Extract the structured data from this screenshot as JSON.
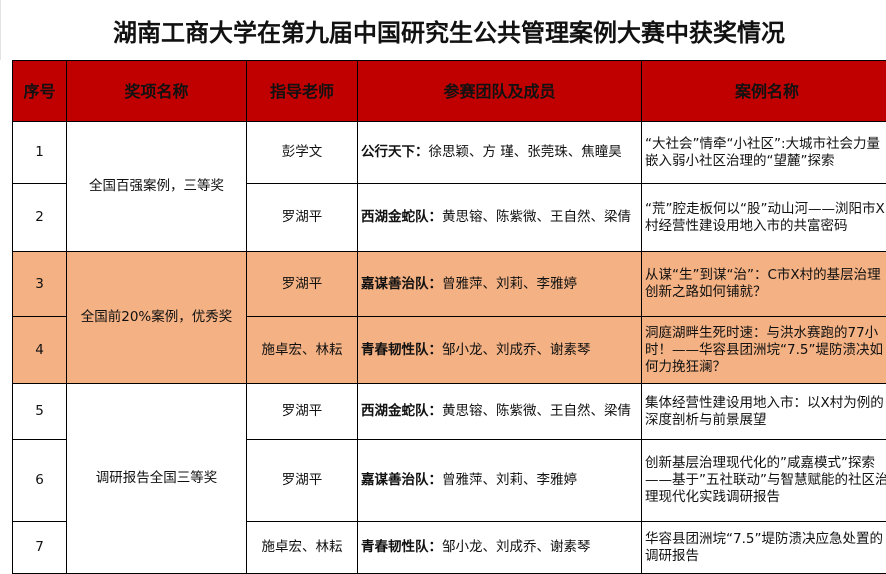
{
  "title": "湖南工商大学在第九届中国研究生公共管理案例大赛中获奖情况",
  "headers": [
    "序号",
    "奖项名称",
    "指导老师",
    "参赛团队及成员",
    "案例名称"
  ],
  "awards": [
    "全国百强案例，三等奖",
    "全国前20%案例，优秀奖",
    "调研报告全国三等奖"
  ],
  "rows": [
    {
      "no": "1",
      "advisor": "彭学文",
      "team": "公行天下：",
      "members": "徐思颖、方 瑾、张莞珠、焦瞳昊",
      "case": "“大社会”情牵“小社区”:大城市社会力量嵌入弱小社区治理的“望麓”探索"
    },
    {
      "no": "2",
      "advisor": "罗湖平",
      "team": "西湖金蛇队：",
      "members": "黄思镕、陈紫微、王自然、梁倩",
      "case": "“荒”腔走板何以“股”动山河——浏阳市X村经营性建设用地入市的共富密码"
    },
    {
      "no": "3",
      "advisor": "罗湖平",
      "team": "嘉谋善治队：",
      "members": "曾雅萍、刘莉、李雅婷",
      "case": "从谋“生”到谋“治”：C市X村的基层治理创新之路如何铺就？"
    },
    {
      "no": "4",
      "advisor": "施卓宏、林耘",
      "team": "青春韧性队：",
      "members": "邹小龙、刘成乔、谢素琴",
      "case": "洞庭湖畔生死时速：与洪水赛跑的77小时！——华容县团洲垸“7.5”堤防溃决如何力挽狂澜？"
    },
    {
      "no": "5",
      "advisor": "罗湖平",
      "team": "西湖金蛇队：",
      "members": "黄思镕、陈紫微、王自然、梁倩",
      "case": "集体经营性建设用地入市：以X村为例的深度剖析与前景展望"
    },
    {
      "no": "6",
      "advisor": "罗湖平",
      "team": "嘉谋善治队：",
      "members": "曾雅萍、刘莉、李雅婷",
      "case": "创新基层治理现代化的”咸嘉模式”探索——基于”五社联动”与智慧赋能的社区治理现代化实践调研报告"
    },
    {
      "no": "7",
      "advisor": "施卓宏、林耘",
      "team": "青春韧性队：",
      "members": "邹小龙、刘成乔、谢素琴",
      "case": "华容县团洲垸“7.5”堤防溃决应急处置的调研报告"
    }
  ],
  "colors": {
    "header_bg": "#c00000",
    "highlight_bg": "#f4b183"
  }
}
